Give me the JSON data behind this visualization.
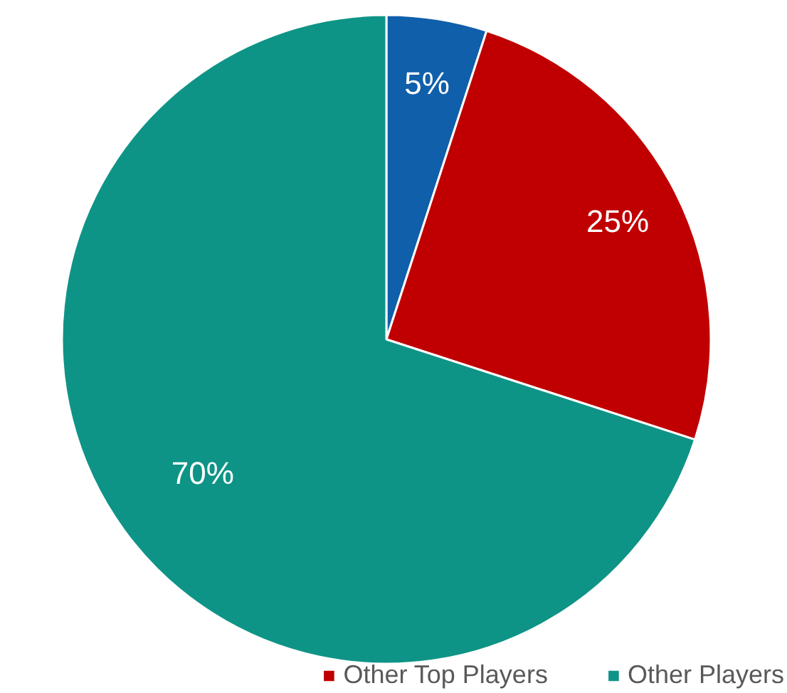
{
  "chart_data": {
    "type": "pie",
    "categories": [
      null,
      "Other Top Players",
      "Other Players"
    ],
    "values": [
      5,
      25,
      70
    ],
    "colors": [
      "#0f5fab",
      "#c00000",
      "#0e9486"
    ],
    "value_labels": [
      "5%",
      "25%",
      "70%"
    ],
    "legend": "bottom"
  }
}
